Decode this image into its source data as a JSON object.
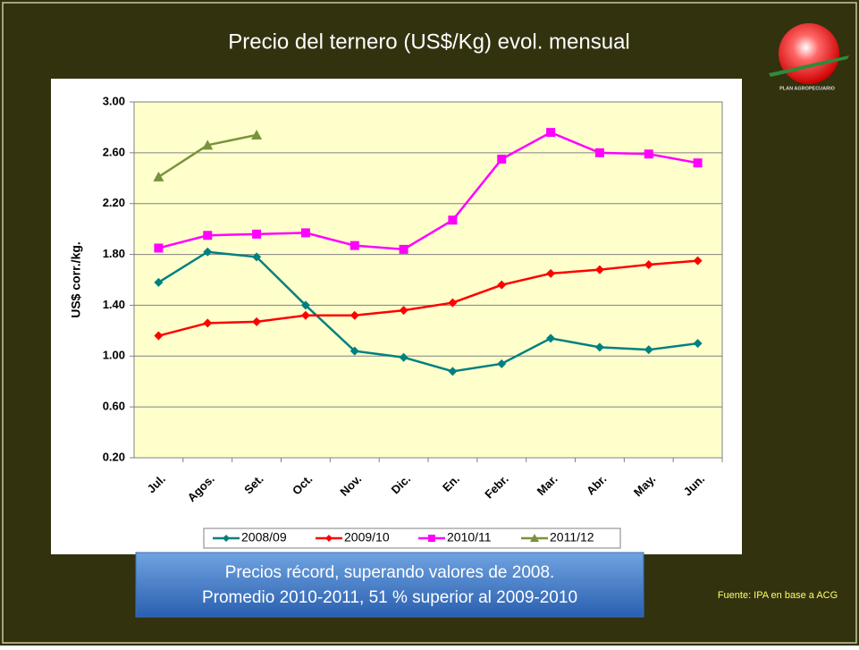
{
  "chart_data": {
    "type": "line",
    "title": "Precio del ternero (US$/Kg) evol. mensual",
    "ylabel": "US$ corr./kg.",
    "categories": [
      "Jul.",
      "Agos.",
      "Set.",
      "Oct.",
      "Nov.",
      "Dic.",
      "En.",
      "Febr.",
      "Mar.",
      "Abr.",
      "May.",
      "Jun."
    ],
    "series": [
      {
        "name": "2008/09",
        "color": "#008080",
        "marker": "diamond",
        "values": [
          1.58,
          1.82,
          1.78,
          1.4,
          1.04,
          0.99,
          0.88,
          0.94,
          1.14,
          1.07,
          1.05,
          1.1
        ]
      },
      {
        "name": "2009/10",
        "color": "#ff0000",
        "marker": "diamond",
        "values": [
          1.16,
          1.26,
          1.27,
          1.32,
          1.32,
          1.36,
          1.42,
          1.56,
          1.65,
          1.68,
          1.72,
          1.75
        ]
      },
      {
        "name": "2010/11",
        "color": "#ff00ff",
        "marker": "square",
        "values": [
          1.85,
          1.95,
          1.96,
          1.97,
          1.87,
          1.84,
          2.07,
          2.55,
          2.76,
          2.6,
          2.59,
          2.52
        ]
      },
      {
        "name": "2011/12",
        "color": "#77933c",
        "marker": "triangle",
        "values": [
          2.41,
          2.66,
          2.74,
          null,
          null,
          null,
          null,
          null,
          null,
          null,
          null,
          null
        ]
      }
    ],
    "ylim": [
      0.2,
      3.0
    ],
    "yticks": [
      {
        "value": 0.2,
        "label": "0.20"
      },
      {
        "value": 0.6,
        "label": "0.60"
      },
      {
        "value": 1.0,
        "label": "1.00"
      },
      {
        "value": 1.4,
        "label": "1.40"
      },
      {
        "value": 1.8,
        "label": "1.80"
      },
      {
        "value": 2.2,
        "label": "2.20"
      },
      {
        "value": 2.6,
        "label": "2.60"
      },
      {
        "value": 3.0,
        "label": "3.00"
      }
    ],
    "grid": true,
    "legend": "bottom"
  },
  "callout": [
    "Precios récord, superando valores de 2008.",
    "Promedio 2010-2011,  51 % superior al 2009-2010"
  ],
  "source": "Fuente: IPA en base a ACG",
  "logo": "PLAN AGROPECUARIO"
}
